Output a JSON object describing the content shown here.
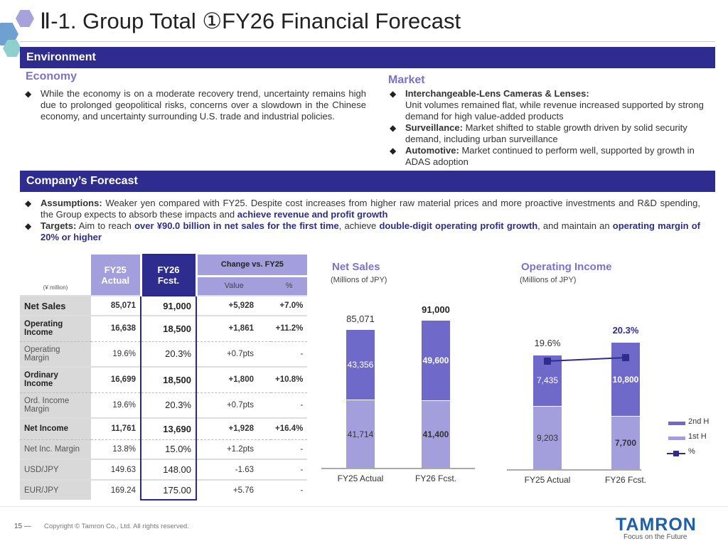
{
  "title": "Ⅱ-1. Group Total ①FY26 Financial Forecast",
  "environment": {
    "header": "Environment",
    "economy_heading": "Economy",
    "economy_bullets": [
      "While the economy is on a moderate recovery trend, uncertainty remains high due to prolonged geopolitical risks, concerns over a slowdown in the Chinese economy, and uncertainty surrounding U.S. trade and industrial policies."
    ],
    "market_heading": "Market",
    "market_bullets": [
      {
        "label": "Interchangeable-Lens Cameras & Lenses:",
        "text": "Unit volumes remained flat, while revenue increased supported by strong demand for high value-added products"
      },
      {
        "label": "Surveillance:",
        "text": "Market shifted to stable growth driven by solid security demand, including urban surveillance"
      },
      {
        "label": "Automotive:",
        "text": "Market continued to perform well, supported by growth in ADAS adoption"
      }
    ]
  },
  "forecast": {
    "header": "Company’s Forecast",
    "assumptions_label": "Assumptions:",
    "assumptions_text": "Weaker yen compared with FY25. Despite cost increases from higher raw material prices and more proactive investments and R&D spending, the Group expects to absorb these impacts and ",
    "assumptions_hl": "achieve revenue and profit growth",
    "targets_label": "Targets:",
    "targets_t1": "Aim to reach ",
    "targets_h1": "over ¥90.0 billion in net sales for the first time",
    "targets_t2": ", achieve ",
    "targets_h2": "double-digit operating profit growth",
    "targets_t3": ", and maintain an ",
    "targets_h3": "operating margin of 20% or higher"
  },
  "table": {
    "unit": "(¥ million)",
    "col_fy25": "FY25 Actual",
    "col_fy26": "FY26 Fcst.",
    "col_change": "Change vs. FY25",
    "col_value": "Value",
    "col_pct": "%",
    "rows": [
      {
        "label": "Net Sales",
        "fy25": "85,071",
        "fy26": "91,000",
        "value": "+5,928",
        "pct": "+7.0%",
        "bold": true
      },
      {
        "label": "Operating Income",
        "fy25": "16,638",
        "fy26": "18,500",
        "value": "+1,861",
        "pct": "+11.2%",
        "bold": true
      },
      {
        "label": "Operating Margin",
        "fy25": "19.6%",
        "fy26": "20.3%",
        "value": "+0.7pts",
        "pct": "-",
        "bold": false
      },
      {
        "label": "Ordinary Income",
        "fy25": "16,699",
        "fy26": "18,500",
        "value": "+1,800",
        "pct": "+10.8%",
        "bold": true
      },
      {
        "label": "Ord. Income Margin",
        "fy25": "19.6%",
        "fy26": "20.3%",
        "value": "+0.7pts",
        "pct": "-",
        "bold": false
      },
      {
        "label": "Net Income",
        "fy25": "11,761",
        "fy26": "13,690",
        "value": "+1,928",
        "pct": "+16.4%",
        "bold": true
      },
      {
        "label": "Net Inc. Margin",
        "fy25": "13.8%",
        "fy26": "15.0%",
        "value": "+1.2pts",
        "pct": "-",
        "bold": false
      },
      {
        "label": "USD/JPY",
        "fy25": "149.63",
        "fy26": "148.00",
        "value": "-1.63",
        "pct": "-",
        "bold": false
      },
      {
        "label": "EUR/JPY",
        "fy25": "169.24",
        "fy26": "175.00",
        "value": "+5.76",
        "pct": "-",
        "bold": false
      }
    ]
  },
  "chart_data": [
    {
      "type": "bar",
      "stacked": true,
      "title": "Net Sales",
      "subtitle": "(Millions of JPY)",
      "categories": [
        "FY25 Actual",
        "FY26 Fcst."
      ],
      "series": [
        {
          "name": "1st H",
          "values": [
            41714,
            41400
          ],
          "labels": [
            "41,714",
            "41,400"
          ]
        },
        {
          "name": "2nd H",
          "values": [
            43356,
            49600
          ],
          "labels": [
            "43,356",
            "49,600"
          ]
        }
      ],
      "totals": [
        "85,071",
        "91,000"
      ]
    },
    {
      "type": "bar",
      "stacked": true,
      "title": "Operating Income",
      "subtitle": "(Millions of JPY)",
      "categories": [
        "FY25 Actual",
        "FY26 Fcst."
      ],
      "series": [
        {
          "name": "1st H",
          "values": [
            9203,
            7700
          ],
          "labels": [
            "9,203",
            "7,700"
          ]
        },
        {
          "name": "2nd H",
          "values": [
            7435,
            10800
          ],
          "labels": [
            "7,435",
            "10,800"
          ]
        },
        {
          "name": "%",
          "type": "line",
          "values": [
            19.6,
            20.3
          ],
          "labels": [
            "19.6%",
            "20.3%"
          ]
        }
      ],
      "legend": [
        "2nd H",
        "1st H",
        "%"
      ]
    }
  ],
  "colors": {
    "navy": "#2e2d8f",
    "h2": "#6f6ac9",
    "h1": "#a39fdd",
    "accent": "#7a72cc"
  },
  "footer": {
    "page": "15",
    "copyright": "Copyright © Tamron Co., Ltd. All rights reserved.",
    "logo": "TAMRON",
    "tagline": "Focus on the Future"
  }
}
